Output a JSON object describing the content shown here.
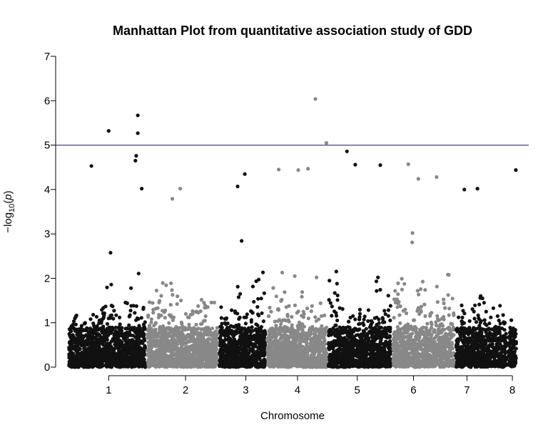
{
  "chart_data": {
    "type": "scatter",
    "subtype": "manhattan",
    "title": "Manhattan Plot from quantitative association study of GDD",
    "xlabel": "Chromosome",
    "ylabel": "-log10(p)",
    "ylabel_parts": {
      "prefix": "−log",
      "sub": "10",
      "open": "(",
      "var": "p",
      "close": ")"
    },
    "ylim": [
      0,
      7
    ],
    "y_ticks": [
      "0",
      "1",
      "2",
      "3",
      "4",
      "5",
      "6",
      "7"
    ],
    "threshold": 5.0,
    "colors": {
      "odd": "#111111",
      "even": "#888888",
      "threshold": "#1a1a8c"
    },
    "chromosomes": [
      {
        "name": "1",
        "start": 0.0,
        "end": 0.175,
        "tick": 0.091,
        "color": "odd",
        "base": 1.2,
        "peaks": [
          [
            0.55,
            1.4
          ],
          [
            0.85,
            2.6
          ]
        ]
      },
      {
        "name": "2",
        "start": 0.175,
        "end": 0.335,
        "tick": 0.262,
        "color": "even",
        "base": 1.7,
        "peaks": [
          [
            0.45,
            2.4
          ],
          [
            0.2,
            1.8
          ]
        ]
      },
      {
        "name": "3",
        "start": 0.335,
        "end": 0.442,
        "tick": 0.396,
        "color": "odd",
        "base": 1.5,
        "peaks": [
          [
            0.85,
            2.2
          ],
          [
            0.5,
            1.6
          ]
        ]
      },
      {
        "name": "4",
        "start": 0.442,
        "end": 0.578,
        "tick": 0.511,
        "color": "even",
        "base": 1.8,
        "peaks": [
          [
            0.7,
            2.7
          ],
          [
            0.35,
            1.9
          ]
        ]
      },
      {
        "name": "5",
        "start": 0.578,
        "end": 0.721,
        "tick": 0.644,
        "color": "odd",
        "base": 1.3,
        "peaks": [
          [
            0.1,
            2.0
          ],
          [
            0.85,
            1.7
          ]
        ]
      },
      {
        "name": "6",
        "start": 0.721,
        "end": 0.861,
        "tick": 0.769,
        "color": "even",
        "base": 2.3,
        "peaks": [
          [
            0.3,
            2.3
          ],
          [
            0.7,
            1.8
          ]
        ]
      },
      {
        "name": "7",
        "start": 0.861,
        "end": 0.978,
        "tick": 0.888,
        "color": "odd",
        "base": 1.4,
        "peaks": [
          [
            0.6,
            1.5
          ]
        ]
      },
      {
        "name": "8",
        "start": 0.978,
        "end": 1.0,
        "tick": 0.989,
        "color": "odd",
        "base": 1.3,
        "peaks": [
          [
            0.9,
            2.6
          ]
        ]
      }
    ],
    "top_hits": [
      {
        "chr": "1",
        "pos": 0.52,
        "y": 5.32
      },
      {
        "chr": "1",
        "pos": 0.89,
        "y": 5.67
      },
      {
        "chr": "1",
        "pos": 0.89,
        "y": 5.27
      },
      {
        "chr": "1",
        "pos": 0.87,
        "y": 4.76
      },
      {
        "chr": "1",
        "pos": 0.86,
        "y": 4.65
      },
      {
        "chr": "1",
        "pos": 0.3,
        "y": 4.53
      },
      {
        "chr": "1",
        "pos": 0.94,
        "y": 4.02
      },
      {
        "chr": "2",
        "pos": 0.47,
        "y": 4.02
      },
      {
        "chr": "2",
        "pos": 0.36,
        "y": 3.79
      },
      {
        "chr": "3",
        "pos": 0.55,
        "y": 4.35
      },
      {
        "chr": "3",
        "pos": 0.4,
        "y": 4.07
      },
      {
        "chr": "4",
        "pos": 0.8,
        "y": 6.04
      },
      {
        "chr": "4",
        "pos": 0.2,
        "y": 4.45
      },
      {
        "chr": "4",
        "pos": 0.52,
        "y": 4.44
      },
      {
        "chr": "4",
        "pos": 0.68,
        "y": 4.47
      },
      {
        "chr": "4",
        "pos": 0.98,
        "y": 5.05
      },
      {
        "chr": "5",
        "pos": 0.3,
        "y": 4.86
      },
      {
        "chr": "5",
        "pos": 0.43,
        "y": 4.56
      },
      {
        "chr": "5",
        "pos": 0.82,
        "y": 4.55
      },
      {
        "chr": "6",
        "pos": 0.26,
        "y": 4.57
      },
      {
        "chr": "6",
        "pos": 0.42,
        "y": 4.24
      },
      {
        "chr": "6",
        "pos": 0.71,
        "y": 4.28
      },
      {
        "chr": "7",
        "pos": 0.18,
        "y": 4.0
      },
      {
        "chr": "7",
        "pos": 0.43,
        "y": 4.02
      },
      {
        "chr": "8",
        "pos": 0.85,
        "y": 4.44
      }
    ]
  }
}
